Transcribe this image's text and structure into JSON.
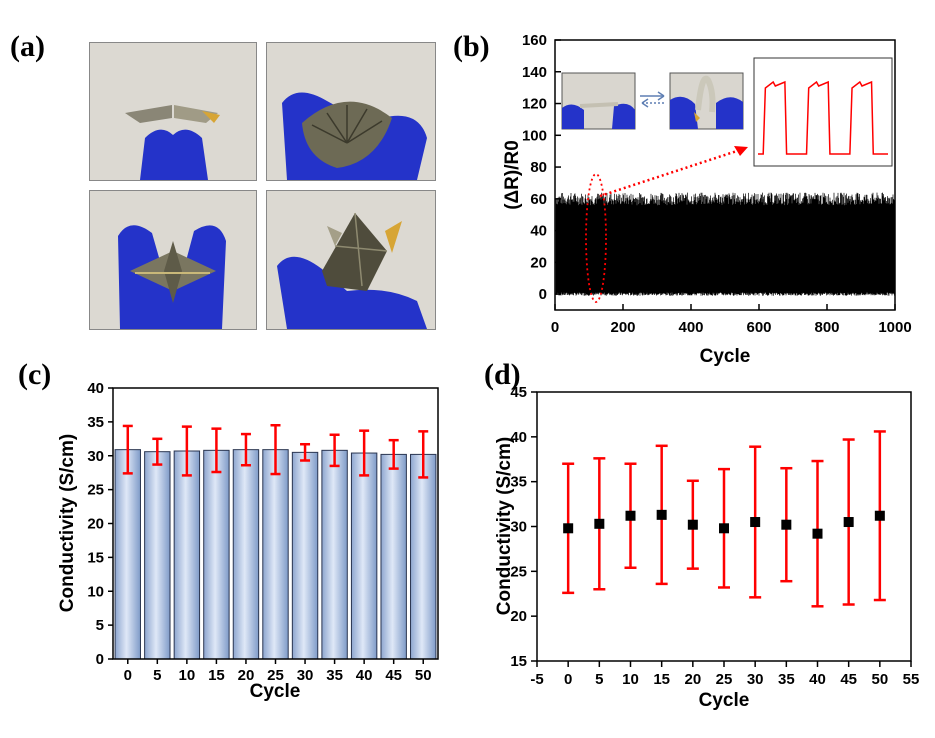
{
  "panels": {
    "a": {
      "label": "(a)"
    },
    "b": {
      "label": "(b)"
    },
    "c": {
      "label": "(c)"
    },
    "d": {
      "label": "(d)"
    }
  },
  "photos": [
    {
      "name": "photo-fold-1",
      "description_icon": "folded-film-photo"
    },
    {
      "name": "photo-fold-2",
      "description_icon": "folded-film-photo"
    },
    {
      "name": "photo-fold-3",
      "description_icon": "folded-film-photo"
    },
    {
      "name": "photo-fold-4",
      "description_icon": "folded-film-photo"
    }
  ],
  "colors": {
    "red": "#ff0000",
    "bar_fill_top": "#dfe8f7",
    "bar_fill_bottom": "#7f9bc8",
    "glove_blue": "#2433c9",
    "photo_bg": "#d9d6cf"
  },
  "chart_data": [
    {
      "id": "b",
      "type": "line",
      "xlabel": "Cycle",
      "ylabel": "(ΔR)/R0",
      "xlim": [
        0,
        1000
      ],
      "ylim": [
        -10,
        160
      ],
      "xticks": [
        0,
        200,
        400,
        600,
        800,
        1000
      ],
      "yticks": [
        0,
        20,
        40,
        60,
        80,
        100,
        120,
        140,
        160
      ],
      "series": [
        {
          "min": 0,
          "max": 60
        }
      ],
      "inset_cycles": 3,
      "highlight_x": 120
    },
    {
      "id": "c",
      "type": "bar",
      "xlabel": "Cycle",
      "ylabel": "Conductivity (S/cm)",
      "categories": [
        "0",
        "5",
        "10",
        "15",
        "20",
        "25",
        "30",
        "35",
        "40",
        "45",
        "50"
      ],
      "values": [
        30.9,
        30.6,
        30.7,
        30.8,
        30.9,
        30.9,
        30.5,
        30.8,
        30.4,
        30.2,
        30.2
      ],
      "errors": [
        3.5,
        1.9,
        3.6,
        3.2,
        2.3,
        3.6,
        1.2,
        2.3,
        3.3,
        2.1,
        3.4
      ],
      "ylim": [
        0,
        40
      ],
      "yticks": [
        0,
        5,
        10,
        15,
        20,
        25,
        30,
        35,
        40
      ]
    },
    {
      "id": "d",
      "type": "scatter",
      "xlabel": "Cycle",
      "ylabel": "Conductivity (S/cm)",
      "x": [
        0,
        5,
        10,
        15,
        20,
        25,
        30,
        35,
        40,
        45,
        50
      ],
      "y": [
        29.8,
        30.3,
        31.2,
        31.3,
        30.2,
        29.8,
        30.5,
        30.2,
        29.2,
        30.5,
        31.2
      ],
      "errors": [
        7.2,
        7.3,
        5.8,
        7.7,
        4.9,
        6.6,
        8.4,
        6.3,
        8.1,
        9.2,
        9.4
      ],
      "xlim": [
        -5,
        55
      ],
      "ylim": [
        15,
        45
      ],
      "xticks": [
        -5,
        0,
        5,
        10,
        15,
        20,
        25,
        30,
        35,
        40,
        45,
        50,
        55
      ],
      "yticks": [
        15,
        20,
        25,
        30,
        35,
        40,
        45
      ]
    }
  ]
}
